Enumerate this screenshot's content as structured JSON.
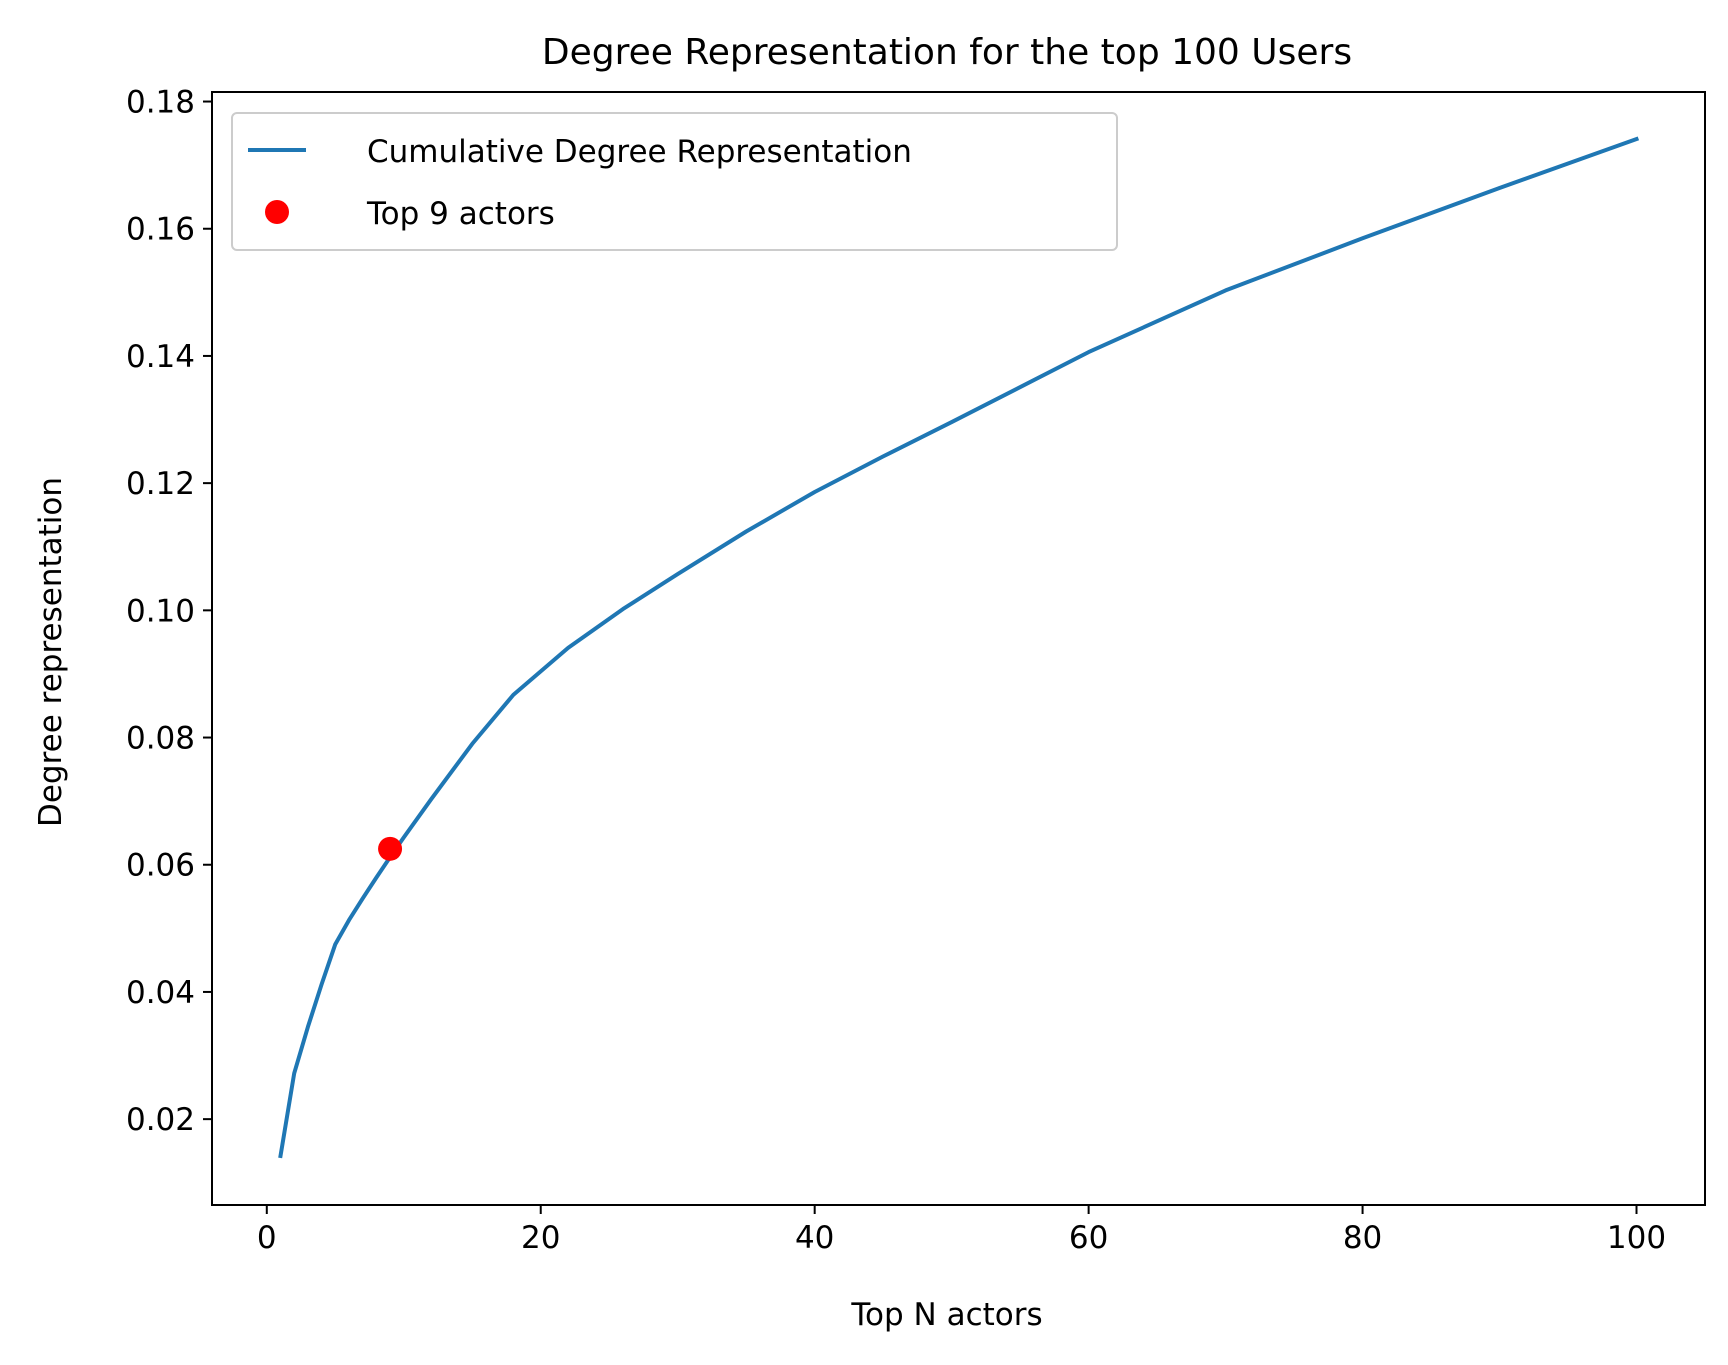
{
  "chart_data": {
    "type": "line",
    "title": "Degree Representation for the top 100 Users",
    "xlabel": "Top N actors",
    "ylabel": "Degree representation",
    "xlim": [
      -4,
      105
    ],
    "ylim": [
      0.0065,
      0.1815
    ],
    "x_ticks": [
      0,
      20,
      40,
      60,
      80,
      100
    ],
    "x_tick_labels": [
      "0",
      "20",
      "40",
      "60",
      "80",
      "100"
    ],
    "y_ticks": [
      0.02,
      0.04,
      0.06,
      0.08,
      0.1,
      0.12,
      0.14,
      0.16,
      0.18
    ],
    "y_tick_labels": [
      "0.02",
      "0.04",
      "0.06",
      "0.08",
      "0.10",
      "0.12",
      "0.14",
      "0.16",
      "0.18"
    ],
    "grid": false,
    "legend_position": "top-left",
    "series": [
      {
        "name": "Cumulative Degree Representation",
        "kind": "line",
        "color": "#1f77b4",
        "x": [
          1,
          2,
          3,
          4,
          5,
          6,
          7,
          8,
          9,
          10,
          12,
          15,
          18,
          22,
          26,
          30,
          35,
          40,
          45,
          50,
          60,
          70,
          80,
          90,
          100
        ],
        "y": [
          0.0142,
          0.0272,
          0.0345,
          0.0412,
          0.0475,
          0.0513,
          0.0547,
          0.058,
          0.0612,
          0.0643,
          0.0703,
          0.079,
          0.0867,
          0.0941,
          0.1002,
          0.1057,
          0.1124,
          0.1186,
          0.1242,
          0.1296,
          0.1406,
          0.1503,
          0.1585,
          0.1664,
          0.1741
        ]
      },
      {
        "name": "Top 9 actors",
        "kind": "points",
        "color": "#ff0000",
        "x": [
          9
        ],
        "y": [
          0.0625
        ]
      }
    ]
  }
}
